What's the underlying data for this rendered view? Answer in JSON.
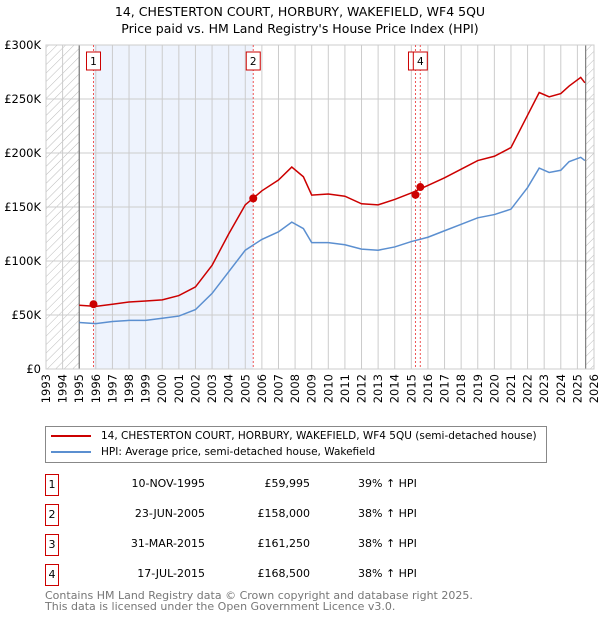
{
  "title_line1": "14, CHESTERTON COURT, HORBURY, WAKEFIELD, WF4 5QU",
  "title_line2": "Price paid vs. HM Land Registry's House Price Index (HPI)",
  "colors": {
    "property": "#cc0000",
    "hpi": "#5b8fd0",
    "shade": "#eef3fd"
  },
  "chart_data": {
    "type": "line",
    "xlim": [
      1993,
      2026
    ],
    "ylim": [
      0,
      300000
    ],
    "x_ticks": [
      "1993",
      "1994",
      "1995",
      "1996",
      "1997",
      "1998",
      "1999",
      "2000",
      "2001",
      "2002",
      "2003",
      "2004",
      "2005",
      "2006",
      "2007",
      "2008",
      "2009",
      "2010",
      "2011",
      "2012",
      "2013",
      "2014",
      "2015",
      "2016",
      "2017",
      "2018",
      "2019",
      "2020",
      "2021",
      "2022",
      "2023",
      "2024",
      "2025",
      "2026"
    ],
    "y_ticks": [
      {
        "v": 0,
        "label": "£0"
      },
      {
        "v": 50000,
        "label": "£50K"
      },
      {
        "v": 100000,
        "label": "£100K"
      },
      {
        "v": 150000,
        "label": "£150K"
      },
      {
        "v": 200000,
        "label": "£200K"
      },
      {
        "v": 250000,
        "label": "£250K"
      },
      {
        "v": 300000,
        "label": "£300K"
      }
    ],
    "data_range": [
      1995,
      2025.5
    ],
    "shaded_period": [
      1995.86,
      2005.48
    ],
    "series": [
      {
        "name": "14, CHESTERTON COURT, HORBURY, WAKEFIELD, WF4 5QU (semi-detached house)",
        "color": "#cc0000",
        "x": [
          1995,
          1996,
          1997,
          1998,
          1999,
          2000,
          2001,
          2002,
          2003,
          2004,
          2005,
          2006,
          2007,
          2007.8,
          2008.5,
          2009,
          2010,
          2011,
          2012,
          2013,
          2014,
          2015,
          2016,
          2017,
          2018,
          2019,
          2020,
          2021,
          2022,
          2022.7,
          2023.3,
          2024,
          2024.5,
          2025.2,
          2025.45
        ],
        "y": [
          59000,
          58000,
          60000,
          62000,
          63000,
          64000,
          68000,
          76000,
          96000,
          125000,
          152000,
          165000,
          175000,
          187000,
          178000,
          161000,
          162000,
          160000,
          153000,
          152000,
          157000,
          163000,
          170000,
          177000,
          185000,
          193000,
          197000,
          205000,
          235000,
          256000,
          252000,
          255000,
          262000,
          270000,
          265000
        ]
      },
      {
        "name": "HPI: Average price, semi-detached house, Wakefield",
        "color": "#5b8fd0",
        "x": [
          1995,
          1996,
          1997,
          1998,
          1999,
          2000,
          2001,
          2002,
          2003,
          2004,
          2005,
          2006,
          2007,
          2007.8,
          2008.5,
          2009,
          2010,
          2011,
          2012,
          2013,
          2014,
          2015,
          2016,
          2017,
          2018,
          2019,
          2020,
          2021,
          2022,
          2022.7,
          2023.3,
          2024,
          2024.5,
          2025.2,
          2025.45
        ],
        "y": [
          43000,
          42000,
          44000,
          45000,
          45000,
          47000,
          49000,
          55000,
          70000,
          90000,
          110000,
          120000,
          127000,
          136000,
          130000,
          117000,
          117000,
          115000,
          111000,
          110000,
          113000,
          118000,
          122000,
          128000,
          134000,
          140000,
          143000,
          148000,
          168000,
          186000,
          182000,
          184000,
          192000,
          196000,
          193000
        ]
      }
    ],
    "sales": [
      {
        "label": "1",
        "x": 1995.86,
        "y": 59995
      },
      {
        "label": "2",
        "x": 2005.48,
        "y": 158000
      },
      {
        "label": "3",
        "x": 2015.25,
        "y": 161250
      },
      {
        "label": "4",
        "x": 2015.54,
        "y": 168500
      }
    ]
  },
  "legend": {
    "property": "14, CHESTERTON COURT, HORBURY, WAKEFIELD, WF4 5QU (semi-detached house)",
    "hpi": "HPI: Average price, semi-detached house, Wakefield"
  },
  "table": [
    {
      "n": "1",
      "date": "10-NOV-1995",
      "price": "£59,995",
      "hpi": "39% ↑ HPI"
    },
    {
      "n": "2",
      "date": "23-JUN-2005",
      "price": "£158,000",
      "hpi": "38% ↑ HPI"
    },
    {
      "n": "3",
      "date": "31-MAR-2015",
      "price": "£161,250",
      "hpi": "38% ↑ HPI"
    },
    {
      "n": "4",
      "date": "17-JUL-2015",
      "price": "£168,500",
      "hpi": "38% ↑ HPI"
    }
  ],
  "footer1": "Contains HM Land Registry data © Crown copyright and database right 2025.",
  "footer2": "This data is licensed under the Open Government Licence v3.0."
}
